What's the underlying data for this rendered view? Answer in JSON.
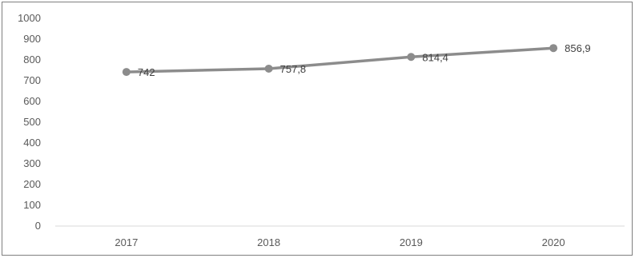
{
  "chart_data": {
    "type": "line",
    "categories": [
      "2017",
      "2018",
      "2019",
      "2020"
    ],
    "series": [
      {
        "values": [
          742,
          757.8,
          814.4,
          856.9
        ],
        "data_labels": [
          "742",
          "757,8",
          "814,4",
          "856,9"
        ]
      }
    ],
    "y_ticks": [
      "0",
      "100",
      "200",
      "300",
      "400",
      "500",
      "600",
      "700",
      "800",
      "900",
      "1000"
    ],
    "ylim": [
      0,
      1000
    ],
    "grid": false,
    "legend": "none",
    "colors": {
      "line": "#8c8c8c",
      "marker": "#8c8c8c",
      "axis": "#d9d9d9",
      "text": "#595959"
    }
  }
}
